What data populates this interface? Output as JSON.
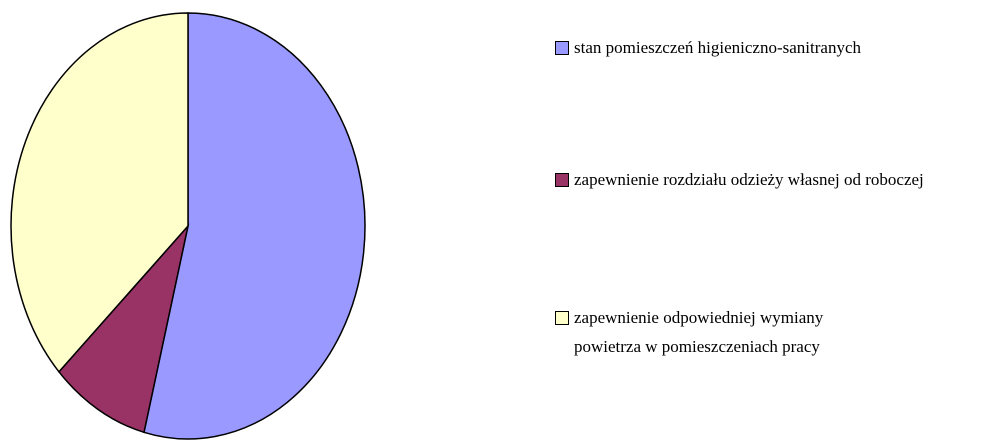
{
  "chart_data": {
    "type": "pie",
    "categories": [
      "stan pomieszczeń higieniczno-sanitranych",
      "zapewnienie rozdziału odzieży własnej od roboczej",
      "zapewnienie odpowiedniej wymiany powietrza w pomieszczeniach pracy"
    ],
    "values": [
      54,
      9,
      37
    ],
    "colors": [
      "#9999ff",
      "#993366",
      "#ffffcc"
    ],
    "legend": "right"
  }
}
